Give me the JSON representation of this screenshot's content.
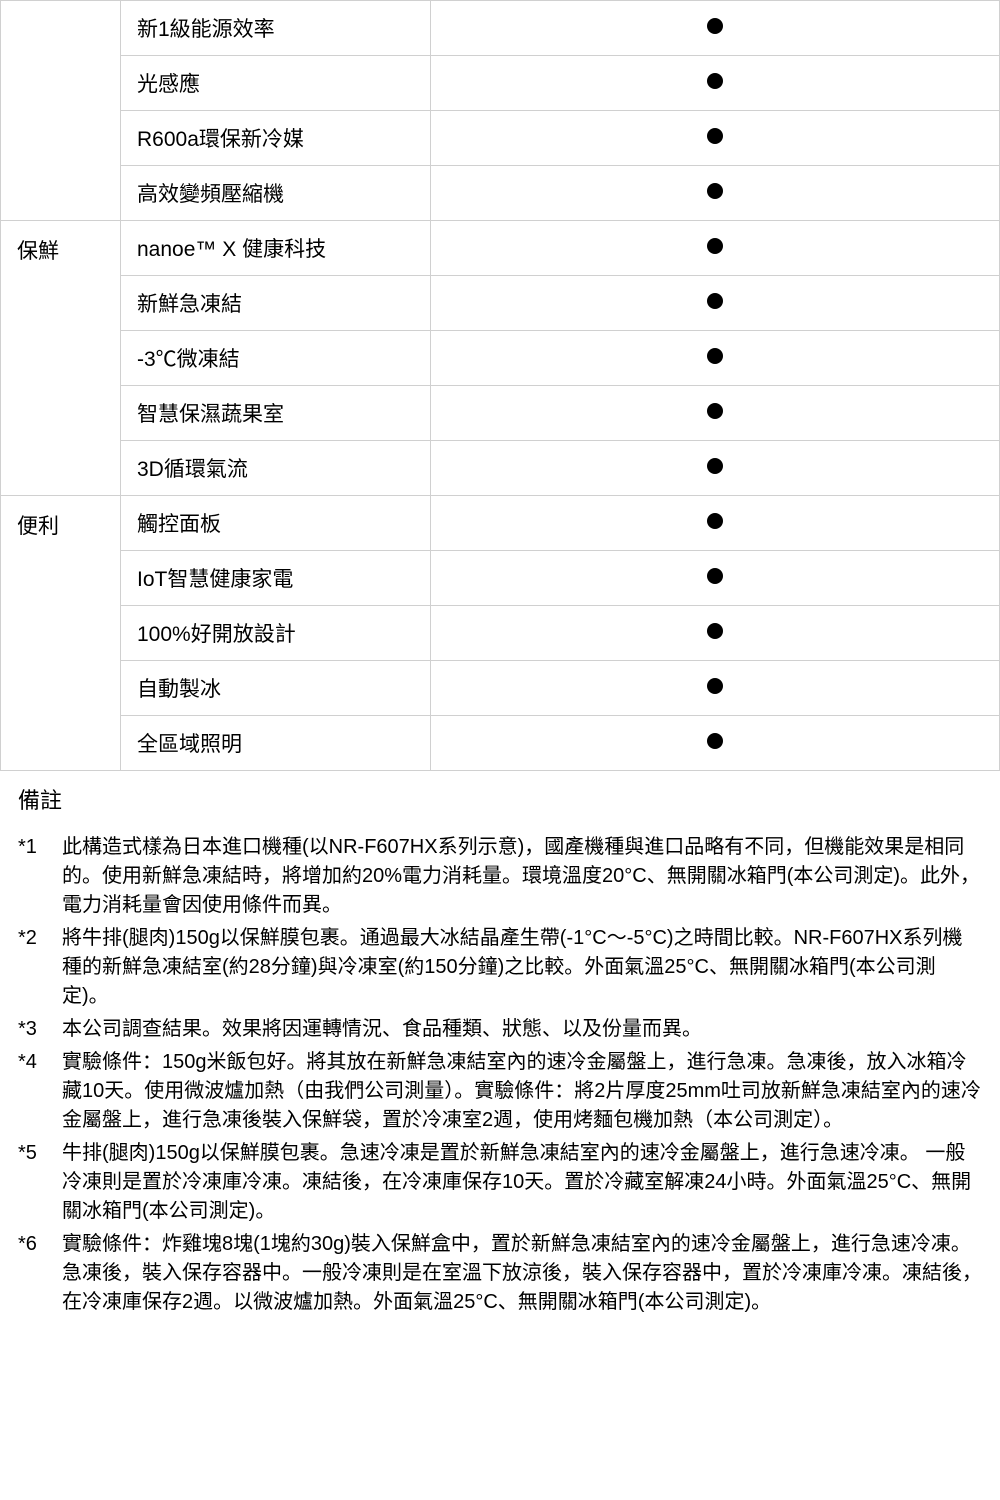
{
  "table": {
    "groups": [
      {
        "category": "",
        "rows": [
          {
            "feature": "新1級能源效率",
            "has_dot": true
          },
          {
            "feature": "光感應",
            "has_dot": true
          },
          {
            "feature": "R600a環保新冷媒",
            "has_dot": true
          },
          {
            "feature": "高效變頻壓縮機",
            "has_dot": true
          }
        ]
      },
      {
        "category": "保鮮",
        "rows": [
          {
            "feature": "nanoe™ X 健康科技",
            "has_dot": true
          },
          {
            "feature": "新鮮急凍結",
            "has_dot": true
          },
          {
            "feature": "-3℃微凍結",
            "has_dot": true
          },
          {
            "feature": "智慧保濕蔬果室",
            "has_dot": true
          },
          {
            "feature": "3D循環氣流",
            "has_dot": true
          }
        ]
      },
      {
        "category": "便利",
        "rows": [
          {
            "feature": "觸控面板",
            "has_dot": true
          },
          {
            "feature": "IoT智慧健康家電",
            "has_dot": true
          },
          {
            "feature": "100%好開放設計",
            "has_dot": true
          },
          {
            "feature": "自動製冰",
            "has_dot": true
          },
          {
            "feature": "全區域照明",
            "has_dot": true
          }
        ]
      }
    ]
  },
  "notes": {
    "title": "備註",
    "items": [
      {
        "marker": "*1",
        "text": "此構造式樣為日本進口機種(以NR-F607HX系列示意)，國產機種與進口品略有不同，但機能效果是相同的。使用新鮮急凍結時，將增加約20%電力消耗量。環境溫度20°C、無開關冰箱門(本公司測定)。此外，電力消耗量會因使用條件而異。"
      },
      {
        "marker": "*2",
        "text": "將牛排(腿肉)150g以保鮮膜包裹。通過最大冰結晶產生帶(-1°C～-5°C)之時間比較。NR-F607HX系列機種的新鮮急凍結室(約28分鐘)與冷凍室(約150分鐘)之比較。外面氣溫25°C、無開關冰箱門(本公司測定)。"
      },
      {
        "marker": "*3",
        "text": "本公司調查結果。效果將因運轉情況、食品種類、狀態、以及份量而異。"
      },
      {
        "marker": "*4",
        "text": "實驗條件：150g米飯包好。將其放在新鮮急凍結室內的速冷金屬盤上，進行急凍。急凍後，放入冰箱冷藏10天。使用微波爐加熱（由我們公司測量）。實驗條件：將2片厚度25mm吐司放新鮮急凍結室內的速冷金屬盤上，進行急凍後裝入保鮮袋，置於冷凍室2週，使用烤麵包機加熱（本公司測定）。"
      },
      {
        "marker": "*5",
        "text": "牛排(腿肉)150g以保鮮膜包裹。急速冷凍是置於新鮮急凍結室內的速冷金屬盤上，進行急速冷凍。 一般冷凍則是置於冷凍庫冷凍。凍結後，在冷凍庫保存10天。置於冷藏室解凍24小時。外面氣溫25°C、無開關冰箱門(本公司測定)。"
      },
      {
        "marker": "*6",
        "text": "實驗條件：炸雞塊8塊(1塊約30g)裝入保鮮盒中，置於新鮮急凍結室內的速冷金屬盤上，進行急速冷凍。急凍後，裝入保存容器中。一般冷凍則是在室溫下放涼後，裝入保存容器中，置於冷凍庫冷凍。凍結後，在冷凍庫保存2週。以微波爐加熱。外面氣溫25°C、無開關冰箱門(本公司測定)。"
      }
    ]
  },
  "colors": {
    "border": "#d0d0d0",
    "text": "#000000",
    "dot": "#000000",
    "background": "#ffffff"
  },
  "typography": {
    "table_fontsize": 21,
    "notes_title_fontsize": 22,
    "notes_text_fontsize": 20
  }
}
